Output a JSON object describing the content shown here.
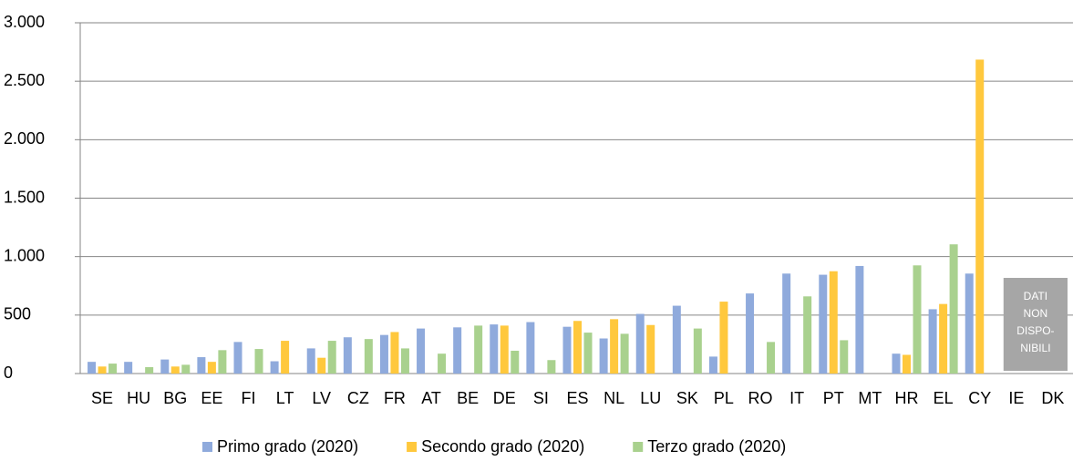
{
  "chart_data": {
    "type": "bar",
    "categories": [
      "SE",
      "HU",
      "BG",
      "EE",
      "FI",
      "LT",
      "LV",
      "CZ",
      "FR",
      "AT",
      "BE",
      "DE",
      "SI",
      "ES",
      "NL",
      "LU",
      "SK",
      "PL",
      "RO",
      "IT",
      "PT",
      "MT",
      "HR",
      "EL",
      "CY",
      "IE",
      "DK"
    ],
    "series": [
      {
        "name": "Primo grado (2020)",
        "color": "#8faadc",
        "values": [
          100,
          100,
          120,
          140,
          270,
          105,
          215,
          310,
          330,
          385,
          395,
          420,
          440,
          400,
          300,
          510,
          580,
          145,
          685,
          855,
          845,
          920,
          170,
          550,
          855,
          null,
          null
        ]
      },
      {
        "name": "Secondo grado (2020)",
        "color": "#ffc83d",
        "values": [
          60,
          null,
          60,
          100,
          null,
          280,
          135,
          null,
          355,
          null,
          null,
          410,
          null,
          450,
          465,
          415,
          null,
          615,
          null,
          null,
          875,
          null,
          160,
          595,
          2685,
          null,
          null
        ]
      },
      {
        "name": "Terzo grado (2020)",
        "color": "#a9d18e",
        "values": [
          85,
          55,
          75,
          200,
          210,
          null,
          280,
          295,
          215,
          170,
          410,
          195,
          115,
          350,
          340,
          null,
          385,
          null,
          270,
          660,
          285,
          null,
          925,
          1105,
          null,
          null,
          null
        ]
      }
    ],
    "ylim": [
      0,
      3000
    ],
    "yticks": [
      0,
      500,
      {
        "value": 1000,
        "label": "1.000"
      },
      {
        "value": 1500,
        "label": "1.500"
      },
      {
        "value": 2000,
        "label": "2.000"
      },
      {
        "value": 2500,
        "label": "2.500"
      },
      {
        "value": 3000,
        "label": "3.000"
      }
    ],
    "grid": true,
    "legend": "bottom",
    "annotation": [
      "DATI",
      "NON",
      "DISPO-",
      "NIBILI"
    ]
  }
}
